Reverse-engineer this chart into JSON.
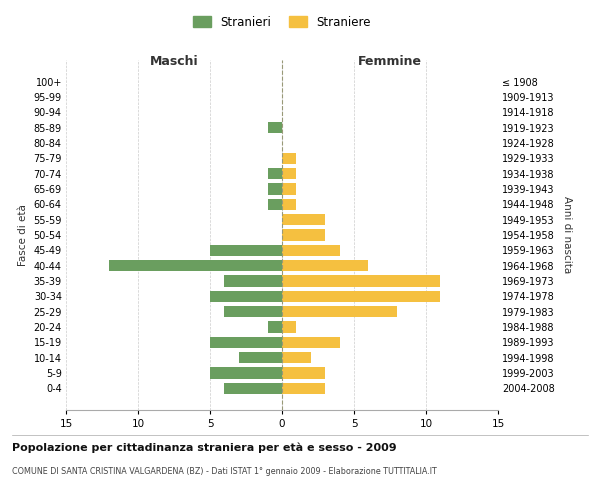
{
  "age_groups": [
    "0-4",
    "5-9",
    "10-14",
    "15-19",
    "20-24",
    "25-29",
    "30-34",
    "35-39",
    "40-44",
    "45-49",
    "50-54",
    "55-59",
    "60-64",
    "65-69",
    "70-74",
    "75-79",
    "80-84",
    "85-89",
    "90-94",
    "95-99",
    "100+"
  ],
  "birth_years": [
    "2004-2008",
    "1999-2003",
    "1994-1998",
    "1989-1993",
    "1984-1988",
    "1979-1983",
    "1974-1978",
    "1969-1973",
    "1964-1968",
    "1959-1963",
    "1954-1958",
    "1949-1953",
    "1944-1948",
    "1939-1943",
    "1934-1938",
    "1929-1933",
    "1924-1928",
    "1919-1923",
    "1914-1918",
    "1909-1913",
    "≤ 1908"
  ],
  "males": [
    4,
    5,
    3,
    5,
    1,
    4,
    5,
    4,
    12,
    5,
    0,
    0,
    1,
    1,
    1,
    0,
    0,
    1,
    0,
    0,
    0
  ],
  "females": [
    3,
    3,
    2,
    4,
    1,
    8,
    11,
    11,
    6,
    4,
    3,
    3,
    1,
    1,
    1,
    1,
    0,
    0,
    0,
    0,
    0
  ],
  "male_color": "#6a9e5f",
  "female_color": "#f5c040",
  "title": "Popolazione per cittadinanza straniera per età e sesso - 2009",
  "subtitle": "COMUNE DI SANTA CRISTINA VALGARDENA (BZ) - Dati ISTAT 1° gennaio 2009 - Elaborazione TUTTITALIA.IT",
  "legend_male": "Stranieri",
  "legend_female": "Straniere",
  "xlabel_left": "Maschi",
  "xlabel_right": "Femmine",
  "ylabel_left": "Fasce di età",
  "ylabel_right": "Anni di nascita",
  "xlim": 15,
  "background_color": "#ffffff",
  "grid_color": "#cccccc"
}
